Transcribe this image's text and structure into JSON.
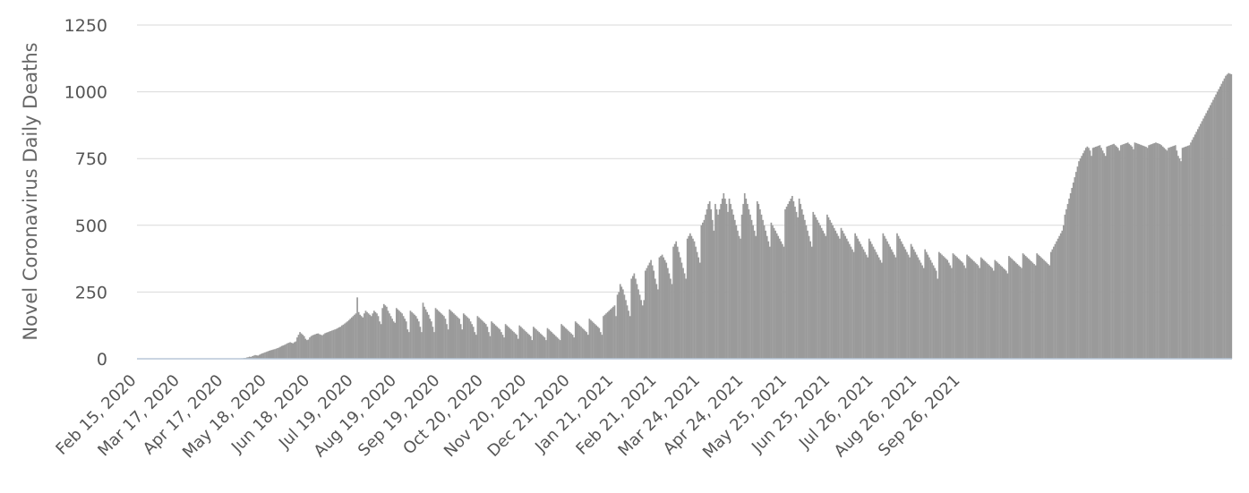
{
  "chart_data": {
    "type": "bar",
    "title": "",
    "xlabel": "",
    "ylabel": "Novel Coronavirus Daily Deaths",
    "ylim": [
      0,
      1250
    ],
    "yticks": [
      0,
      250,
      500,
      750,
      1000,
      1250
    ],
    "x_start": "Feb 15, 2020",
    "x_end": "Oct 18, 2021",
    "x_tick_labels": [
      "Feb 15, 2020",
      "Mar 17, 2020",
      "Apr 17, 2020",
      "May 18, 2020",
      "Jun 18, 2020",
      "Jul 19, 2020",
      "Aug 19, 2020",
      "Sep 19, 2020",
      "Oct 20, 2020",
      "Nov 20, 2020",
      "Dec 21, 2020",
      "Jan 21, 2021",
      "Feb 21, 2021",
      "Mar 24, 2021",
      "Apr 24, 2021",
      "May 25, 2021",
      "Jun 25, 2021",
      "Jul 26, 2021",
      "Aug 26, 2021",
      "Sep 26, 2021"
    ],
    "grid": true,
    "legend": "none",
    "bar_color": "#9a9a9a",
    "series": [
      {
        "values": [
          0,
          0,
          0,
          0,
          0,
          0,
          0,
          0,
          0,
          0,
          0,
          0,
          0,
          0,
          0,
          0,
          0,
          0,
          0,
          0,
          0,
          0,
          0,
          0,
          0,
          0,
          0,
          0,
          0,
          0,
          0,
          0,
          0,
          0,
          0,
          0,
          0,
          0,
          0,
          0,
          0,
          0,
          0,
          0,
          0,
          0,
          0,
          0,
          0,
          0,
          0,
          0,
          0,
          0,
          0,
          0,
          0,
          0,
          0,
          0,
          0,
          0,
          0,
          0,
          0,
          0,
          0,
          0,
          0,
          0,
          0,
          0,
          0,
          1,
          2,
          2,
          3,
          3,
          5,
          6,
          8,
          7,
          10,
          12,
          14,
          13,
          12,
          15,
          18,
          20,
          22,
          24,
          26,
          28,
          30,
          32,
          33,
          35,
          36,
          38,
          40,
          42,
          45,
          48,
          50,
          52,
          55,
          58,
          60,
          62,
          60,
          58,
          62,
          65,
          80,
          90,
          100,
          95,
          90,
          85,
          75,
          70,
          72,
          80,
          85,
          88,
          90,
          92,
          94,
          95,
          92,
          90,
          88,
          92,
          96,
          98,
          100,
          102,
          104,
          106,
          108,
          110,
          112,
          115,
          118,
          120,
          125,
          128,
          132,
          136,
          140,
          145,
          150,
          155,
          160,
          165,
          170,
          230,
          175,
          165,
          160,
          155,
          170,
          180,
          175,
          170,
          165,
          160,
          170,
          180,
          175,
          170,
          160,
          140,
          130,
          190,
          205,
          200,
          195,
          180,
          170,
          160,
          150,
          140,
          135,
          190,
          185,
          180,
          175,
          170,
          160,
          150,
          140,
          110,
          100,
          180,
          175,
          170,
          165,
          160,
          150,
          140,
          120,
          100,
          210,
          195,
          185,
          175,
          165,
          150,
          140,
          120,
          100,
          190,
          185,
          180,
          175,
          170,
          165,
          160,
          150,
          130,
          110,
          185,
          180,
          175,
          170,
          165,
          160,
          155,
          150,
          130,
          110,
          170,
          165,
          160,
          155,
          150,
          140,
          130,
          120,
          100,
          90,
          160,
          155,
          150,
          145,
          140,
          135,
          130,
          120,
          100,
          85,
          140,
          135,
          130,
          125,
          120,
          115,
          110,
          100,
          90,
          80,
          130,
          125,
          120,
          115,
          110,
          105,
          100,
          95,
          90,
          75,
          125,
          120,
          115,
          110,
          105,
          100,
          95,
          90,
          85,
          70,
          120,
          115,
          110,
          105,
          100,
          95,
          90,
          85,
          80,
          70,
          115,
          110,
          105,
          100,
          95,
          90,
          85,
          80,
          75,
          70,
          130,
          125,
          120,
          115,
          110,
          105,
          100,
          95,
          90,
          80,
          140,
          135,
          130,
          125,
          120,
          115,
          110,
          105,
          100,
          90,
          150,
          145,
          140,
          135,
          130,
          125,
          120,
          115,
          100,
          90,
          160,
          165,
          170,
          175,
          180,
          185,
          190,
          195,
          200,
          160,
          240,
          250,
          280,
          270,
          260,
          240,
          220,
          200,
          180,
          160,
          300,
          310,
          320,
          300,
          280,
          260,
          240,
          220,
          200,
          220,
          330,
          340,
          350,
          360,
          370,
          350,
          330,
          300,
          280,
          260,
          380,
          385,
          390,
          380,
          370,
          360,
          340,
          320,
          300,
          280,
          420,
          430,
          440,
          420,
          400,
          380,
          360,
          340,
          320,
          300,
          450,
          460,
          470,
          460,
          450,
          440,
          420,
          400,
          380,
          360,
          500,
          510,
          520,
          540,
          560,
          580,
          590,
          560,
          520,
          480,
          580,
          560,
          540,
          560,
          580,
          600,
          620,
          600,
          580,
          550,
          600,
          580,
          560,
          540,
          520,
          500,
          480,
          460,
          450,
          540,
          580,
          620,
          600,
          580,
          560,
          540,
          520,
          500,
          480,
          460,
          590,
          580,
          560,
          540,
          520,
          500,
          480,
          460,
          440,
          420,
          510,
          500,
          490,
          480,
          470,
          460,
          450,
          440,
          430,
          420,
          560,
          570,
          580,
          590,
          600,
          610,
          590,
          570,
          550,
          530,
          600,
          580,
          560,
          540,
          520,
          500,
          480,
          460,
          440,
          420,
          550,
          540,
          530,
          520,
          510,
          500,
          490,
          480,
          470,
          460,
          540,
          530,
          520,
          510,
          500,
          490,
          480,
          470,
          460,
          450,
          490,
          480,
          470,
          460,
          450,
          440,
          430,
          420,
          410,
          400,
          470,
          460,
          450,
          440,
          430,
          420,
          410,
          400,
          390,
          380,
          450,
          440,
          430,
          420,
          410,
          400,
          390,
          380,
          370,
          360,
          470,
          460,
          450,
          440,
          430,
          420,
          410,
          400,
          390,
          380,
          470,
          460,
          450,
          440,
          430,
          420,
          410,
          400,
          390,
          380,
          430,
          420,
          410,
          400,
          390,
          380,
          370,
          360,
          350,
          340,
          410,
          400,
          390,
          380,
          370,
          360,
          350,
          340,
          330,
          300,
          400,
          395,
          390,
          385,
          380,
          375,
          370,
          360,
          350,
          340,
          395,
          390,
          385,
          380,
          375,
          370,
          365,
          360,
          350,
          340,
          390,
          385,
          380,
          375,
          370,
          365,
          360,
          355,
          350,
          340,
          380,
          375,
          370,
          365,
          360,
          355,
          350,
          345,
          340,
          330,
          370,
          365,
          360,
          355,
          350,
          345,
          340,
          335,
          330,
          320,
          385,
          380,
          375,
          370,
          365,
          360,
          355,
          350,
          345,
          340,
          395,
          390,
          385,
          380,
          375,
          370,
          365,
          360,
          355,
          350,
          395,
          390,
          385,
          380,
          375,
          370,
          365,
          360,
          355,
          350,
          400,
          410,
          420,
          430,
          440,
          450,
          460,
          470,
          480,
          500,
          540,
          560,
          580,
          600,
          620,
          640,
          660,
          680,
          700,
          720,
          740,
          750,
          760,
          770,
          780,
          790,
          795,
          790,
          780,
          760,
          790,
          792,
          794,
          796,
          798,
          800,
          790,
          780,
          770,
          760,
          795,
          797,
          799,
          801,
          803,
          805,
          800,
          795,
          790,
          780,
          800,
          802,
          804,
          806,
          808,
          810,
          805,
          800,
          795,
          785,
          810,
          808,
          806,
          804,
          802,
          800,
          798,
          796,
          794,
          790,
          800,
          802,
          804,
          806,
          808,
          810,
          808,
          806,
          804,
          800,
          795,
          790,
          785,
          780,
          790,
          792,
          794,
          796,
          798,
          800,
          780,
          760,
          750,
          740,
          790,
          792,
          794,
          796,
          798,
          800,
          810,
          820,
          830,
          840,
          850,
          860,
          870,
          880,
          890,
          900,
          910,
          920,
          930,
          940,
          950,
          960,
          970,
          980,
          990,
          1000,
          1010,
          1020,
          1030,
          1040,
          1050,
          1060,
          1065,
          1070,
          1068,
          1066
        ]
      }
    ]
  }
}
